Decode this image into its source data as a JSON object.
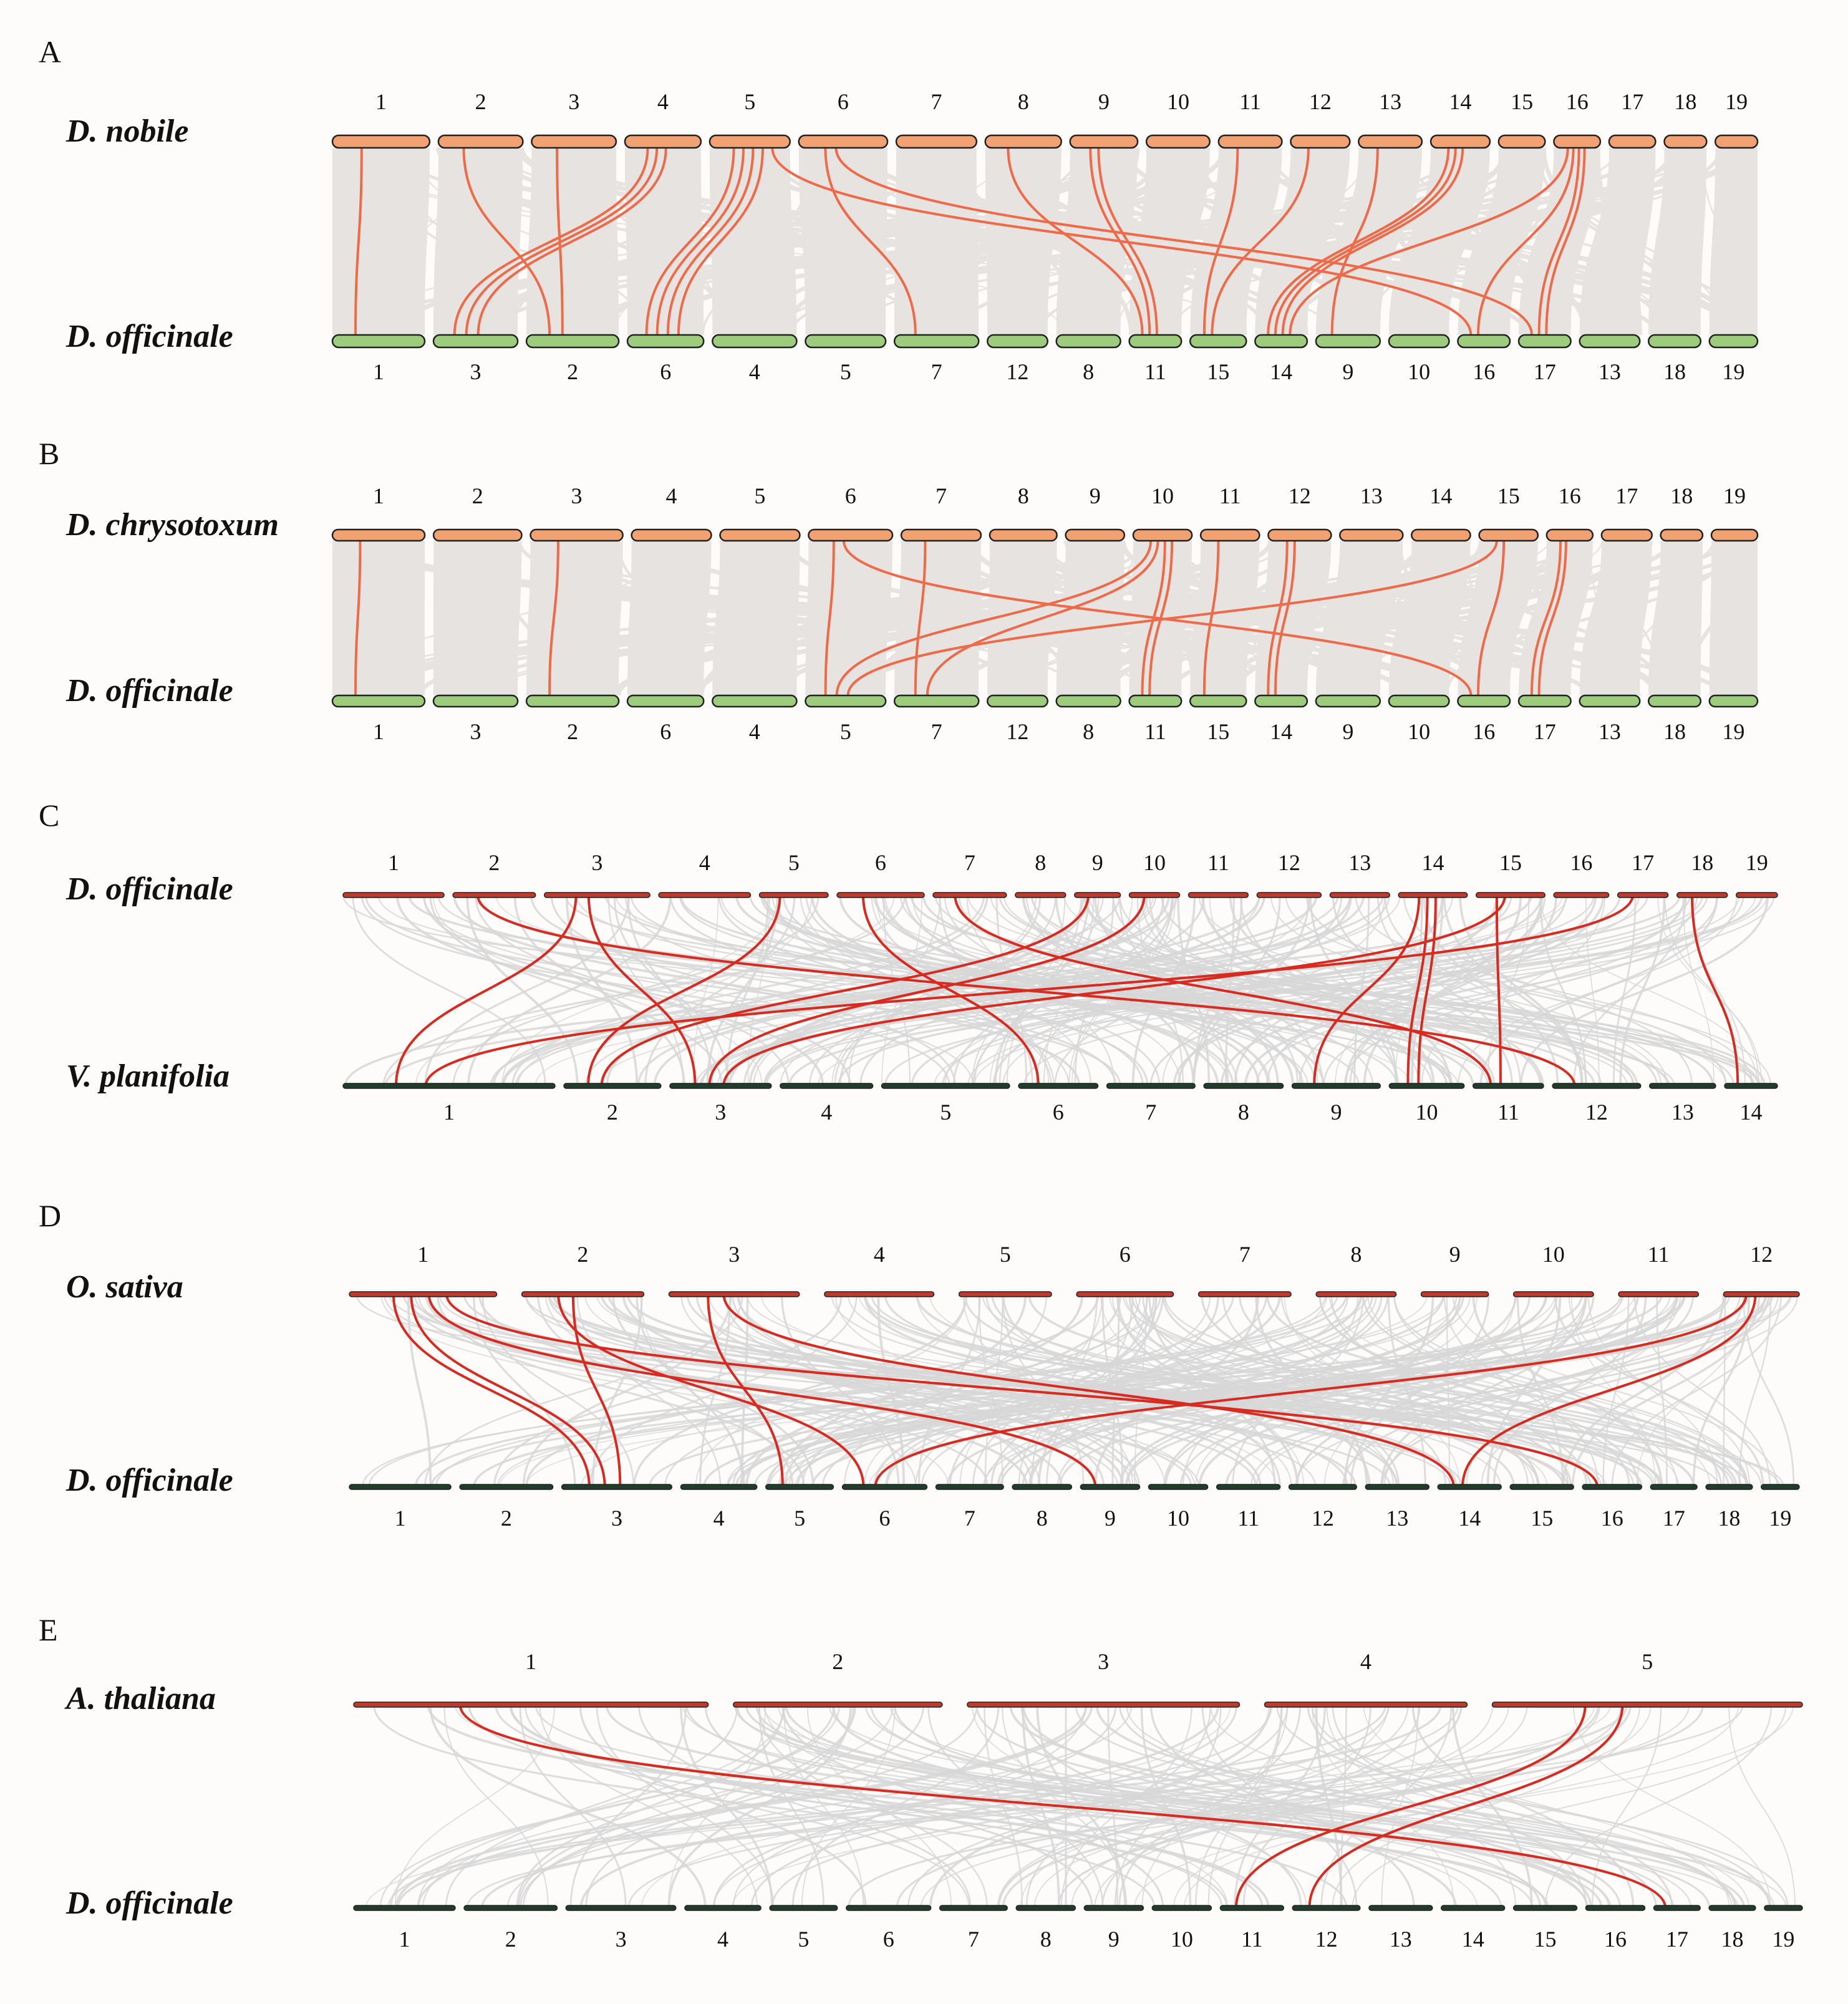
{
  "colors": {
    "orange_bar": "#f2a172",
    "green_bar": "#9ccc7c",
    "dark_bar": "#1f3d2a",
    "red_bar": "#c0392b",
    "hi_orange": "#ef6a48",
    "hi_red": "#d92a1f",
    "bg_ribbon": "#e6e3e1",
    "bg_line": "#d7d7d7",
    "page": "#fdfcfb"
  },
  "panels": [
    {
      "id": "A",
      "label": "A",
      "style": "ribbon",
      "top": {
        "species": "D. nobile",
        "chromosomes": [
          "1",
          "2",
          "3",
          "4",
          "5",
          "6",
          "7",
          "8",
          "9",
          "10",
          "11",
          "12",
          "13",
          "14",
          "15",
          "16",
          "17",
          "18",
          "19"
        ]
      },
      "bottom": {
        "species": "D. officinale",
        "chromosomes": [
          "1",
          "3",
          "2",
          "6",
          "4",
          "5",
          "7",
          "12",
          "8",
          "11",
          "15",
          "14",
          "9",
          "10",
          "16",
          "17",
          "13",
          "18",
          "19"
        ]
      },
      "highlight_links": [
        [
          1,
          1
        ],
        [
          4,
          3
        ],
        [
          4,
          3
        ],
        [
          4,
          3
        ],
        [
          2,
          2
        ],
        [
          3,
          2
        ],
        [
          5,
          6
        ],
        [
          5,
          6
        ],
        [
          5,
          6
        ],
        [
          5,
          6
        ],
        [
          6,
          7
        ],
        [
          5,
          16
        ],
        [
          6,
          17
        ],
        [
          8,
          11
        ],
        [
          9,
          11
        ],
        [
          9,
          11
        ],
        [
          11,
          15
        ],
        [
          12,
          15
        ],
        [
          14,
          14
        ],
        [
          14,
          14
        ],
        [
          14,
          14
        ],
        [
          16,
          14
        ],
        [
          13,
          9
        ],
        [
          16,
          16
        ],
        [
          16,
          17
        ],
        [
          16,
          17
        ]
      ]
    },
    {
      "id": "B",
      "label": "B",
      "style": "ribbon",
      "top": {
        "species": "D. chrysotoxum",
        "chromosomes": [
          "1",
          "2",
          "3",
          "4",
          "5",
          "6",
          "7",
          "8",
          "9",
          "10",
          "11",
          "12",
          "13",
          "14",
          "15",
          "16",
          "17",
          "18",
          "19"
        ]
      },
      "bottom": {
        "species": "D. officinale",
        "chromosomes": [
          "1",
          "3",
          "2",
          "6",
          "4",
          "5",
          "7",
          "12",
          "8",
          "11",
          "15",
          "14",
          "9",
          "10",
          "16",
          "17",
          "13",
          "18",
          "19"
        ]
      },
      "highlight_links": [
        [
          1,
          1
        ],
        [
          3,
          2
        ],
        [
          6,
          5
        ],
        [
          6,
          16
        ],
        [
          7,
          7
        ],
        [
          10,
          5
        ],
        [
          10,
          7
        ],
        [
          10,
          11
        ],
        [
          10,
          11
        ],
        [
          11,
          15
        ],
        [
          12,
          14
        ],
        [
          12,
          14
        ],
        [
          15,
          5
        ],
        [
          15,
          16
        ],
        [
          16,
          17
        ],
        [
          16,
          17
        ]
      ]
    },
    {
      "id": "C",
      "label": "C",
      "style": "lines",
      "top": {
        "species": "D. officinale",
        "chromosomes": [
          "1",
          "2",
          "3",
          "4",
          "5",
          "6",
          "7",
          "8",
          "9",
          "10",
          "11",
          "12",
          "13",
          "14",
          "15",
          "16",
          "17",
          "18",
          "19"
        ]
      },
      "bottom": {
        "species": "V. planifolia",
        "chromosomes": [
          "1",
          "2",
          "3",
          "4",
          "5",
          "6",
          "7",
          "8",
          "9",
          "10",
          "11",
          "12",
          "13",
          "14"
        ]
      },
      "highlight_links": [
        [
          2,
          12
        ],
        [
          3,
          1
        ],
        [
          3,
          3
        ],
        [
          5,
          2
        ],
        [
          6,
          6
        ],
        [
          7,
          11
        ],
        [
          9,
          2
        ],
        [
          10,
          3
        ],
        [
          14,
          9
        ],
        [
          14,
          10
        ],
        [
          14,
          10
        ],
        [
          15,
          11
        ],
        [
          15,
          3
        ],
        [
          17,
          1
        ],
        [
          18,
          14
        ]
      ]
    },
    {
      "id": "D",
      "label": "D",
      "style": "lines",
      "top": {
        "species": "O. sativa",
        "chromosomes": [
          "1",
          "2",
          "3",
          "4",
          "5",
          "6",
          "7",
          "8",
          "9",
          "10",
          "11",
          "12"
        ]
      },
      "bottom": {
        "species": "D. officinale",
        "chromosomes": [
          "1",
          "2",
          "3",
          "4",
          "5",
          "6",
          "7",
          "8",
          "9",
          "10",
          "11",
          "12",
          "13",
          "14",
          "15",
          "16",
          "17",
          "18",
          "19"
        ]
      },
      "highlight_links": [
        [
          1,
          3
        ],
        [
          1,
          3
        ],
        [
          1,
          9
        ],
        [
          1,
          16
        ],
        [
          2,
          6
        ],
        [
          2,
          3
        ],
        [
          3,
          5
        ],
        [
          3,
          14
        ],
        [
          12,
          6
        ],
        [
          12,
          14
        ]
      ]
    },
    {
      "id": "E",
      "label": "E",
      "style": "lines",
      "top": {
        "species": "A. thaliana",
        "chromosomes": [
          "1",
          "2",
          "3",
          "4",
          "5"
        ]
      },
      "bottom": {
        "species": "D. officinale",
        "chromosomes": [
          "1",
          "2",
          "3",
          "4",
          "5",
          "6",
          "7",
          "8",
          "9",
          "10",
          "11",
          "12",
          "13",
          "14",
          "15",
          "16",
          "17",
          "18",
          "19"
        ]
      },
      "highlight_links": [
        [
          1,
          17
        ],
        [
          5,
          11
        ],
        [
          5,
          12
        ]
      ]
    }
  ]
}
